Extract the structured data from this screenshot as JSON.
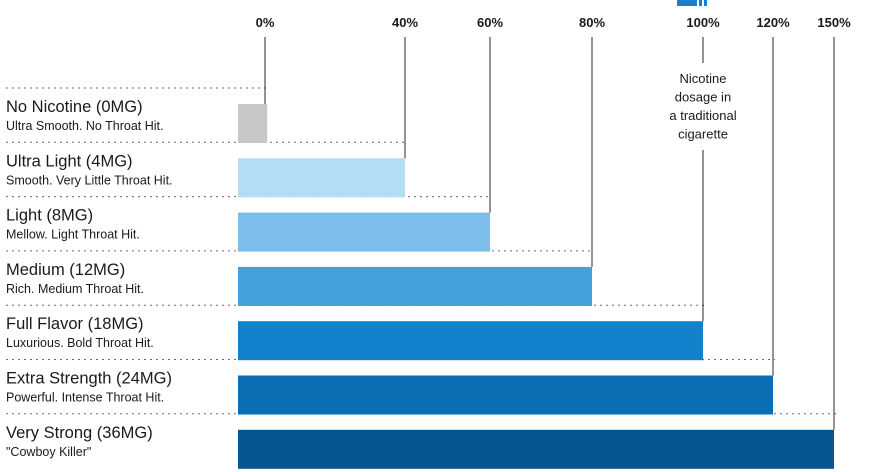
{
  "chart_data": {
    "type": "bar",
    "orientation": "horizontal",
    "x_ticks": [
      {
        "value": 0,
        "label": "0%"
      },
      {
        "value": 40,
        "label": "40%"
      },
      {
        "value": 60,
        "label": "60%"
      },
      {
        "value": 80,
        "label": "80%"
      },
      {
        "value": 100,
        "label": "100%"
      },
      {
        "value": 120,
        "label": "120%"
      },
      {
        "value": 150,
        "label": "150%"
      }
    ],
    "categories": [
      {
        "title": "No Nicotine (0MG)",
        "subtitle": "Ultra Smooth. No Throat Hit.",
        "value": 7,
        "color": "#c8c8c8"
      },
      {
        "title": "Ultra Light (4MG)",
        "subtitle": "Smooth. Very Little Throat Hit.",
        "value": 40,
        "color": "#b2ddf7"
      },
      {
        "title": "Light (8MG)",
        "subtitle": "Mellow. Light Throat Hit.",
        "value": 60,
        "color": "#7cbde9"
      },
      {
        "title": "Medium (12MG)",
        "subtitle": "Rich. Medium Throat Hit.",
        "value": 80,
        "color": "#42a0da"
      },
      {
        "title": "Full Flavor (18MG)",
        "subtitle": "Luxurious. Bold Throat Hit.",
        "value": 100,
        "color": "#1282cf"
      },
      {
        "title": "Extra Strength (24MG)",
        "subtitle": "Powerful. Intense Throat Hit.",
        "value": 120,
        "color": "#0b6fb6"
      },
      {
        "title": "Very Strong (36MG)",
        "subtitle": "\"Cowboy Killer\"",
        "value": 150,
        "color": "#065590"
      }
    ],
    "annotation": {
      "lines": [
        "Nicotine",
        "dosage in",
        "a traditional",
        "cigarette"
      ],
      "at_value": 100
    },
    "grid": true,
    "legend": "none"
  }
}
